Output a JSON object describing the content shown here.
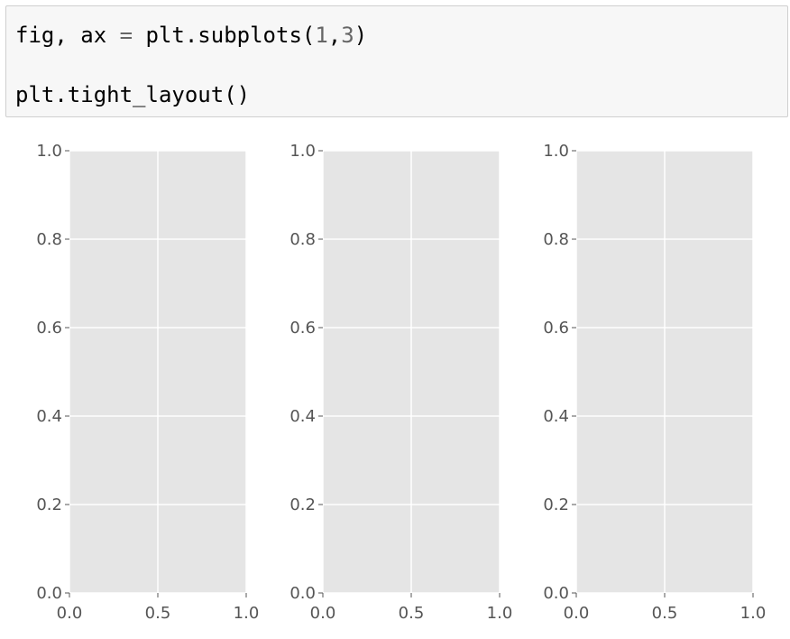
{
  "code_cell": {
    "line1": {
      "part_a": "fig, ax ",
      "op": "=",
      "part_b": " plt.subplots(",
      "num1": "1",
      "comma": ",",
      "num2": "3",
      "close": ")"
    },
    "line2": "plt.tight_layout()"
  },
  "colors": {
    "axes_face": "#e5e5e5",
    "grid": "#ffffff",
    "tick_label": "#555555",
    "cell_bg": "#f7f7f7",
    "cell_border": "#cfcfcf"
  },
  "chart_data": [
    {
      "type": "scatter",
      "series": [],
      "xlim": [
        0.0,
        1.0
      ],
      "ylim": [
        0.0,
        1.0
      ],
      "xticks": [
        "0.0",
        "0.5",
        "1.0"
      ],
      "yticks": [
        "0.0",
        "0.2",
        "0.4",
        "0.6",
        "0.8",
        "1.0"
      ],
      "grid": true,
      "title": "",
      "xlabel": "",
      "ylabel": ""
    },
    {
      "type": "scatter",
      "series": [],
      "xlim": [
        0.0,
        1.0
      ],
      "ylim": [
        0.0,
        1.0
      ],
      "xticks": [
        "0.0",
        "0.5",
        "1.0"
      ],
      "yticks": [
        "0.0",
        "0.2",
        "0.4",
        "0.6",
        "0.8",
        "1.0"
      ],
      "grid": true,
      "title": "",
      "xlabel": "",
      "ylabel": ""
    },
    {
      "type": "scatter",
      "series": [],
      "xlim": [
        0.0,
        1.0
      ],
      "ylim": [
        0.0,
        1.0
      ],
      "xticks": [
        "0.0",
        "0.5",
        "1.0"
      ],
      "yticks": [
        "0.0",
        "0.2",
        "0.4",
        "0.6",
        "0.8",
        "1.0"
      ],
      "grid": true,
      "title": "",
      "xlabel": "",
      "ylabel": ""
    }
  ]
}
